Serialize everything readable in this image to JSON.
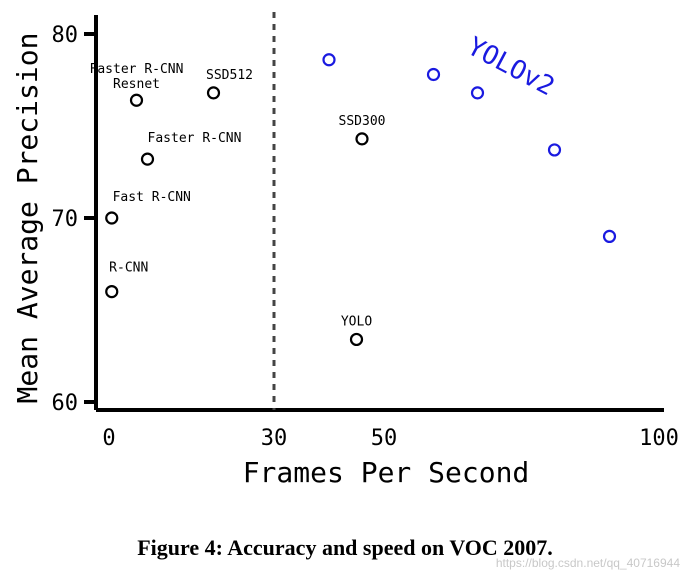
{
  "chart_data": {
    "type": "scatter",
    "xlabel": "Frames Per Second",
    "ylabel": "Mean Average Precision",
    "xlim": [
      -2,
      100
    ],
    "ylim": [
      59,
      81
    ],
    "x_ticks": [
      0,
      30,
      50,
      100
    ],
    "y_ticks": [
      60,
      70,
      80
    ],
    "divider_x": 30,
    "series": [
      {
        "name": "",
        "color": "#000000",
        "points": [
          {
            "label": "R-CNN",
            "x": 0.5,
            "y": 66.0
          },
          {
            "label": "Fast R-CNN",
            "x": 0.5,
            "y": 70.0
          },
          {
            "label": "Faster R-CNN",
            "x": 7,
            "y": 73.2
          },
          {
            "label": "Faster R-CNN Resnet",
            "x": 5,
            "y": 76.4
          },
          {
            "label": "SSD512",
            "x": 19,
            "y": 76.8
          },
          {
            "label": "SSD300",
            "x": 46,
            "y": 74.3
          },
          {
            "label": "YOLO",
            "x": 45,
            "y": 63.4
          }
        ]
      },
      {
        "name": "YOLOv2",
        "color": "#1a1ae0",
        "points": [
          {
            "x": 40,
            "y": 78.6
          },
          {
            "x": 59,
            "y": 77.8
          },
          {
            "x": 67,
            "y": 76.8
          },
          {
            "x": 81,
            "y": 73.7
          },
          {
            "x": 91,
            "y": 69.0
          }
        ]
      }
    ]
  },
  "caption": "Figure 4: Accuracy and speed on VOC 2007.",
  "watermark": "https://blog.csdn.net/qq_40716944"
}
